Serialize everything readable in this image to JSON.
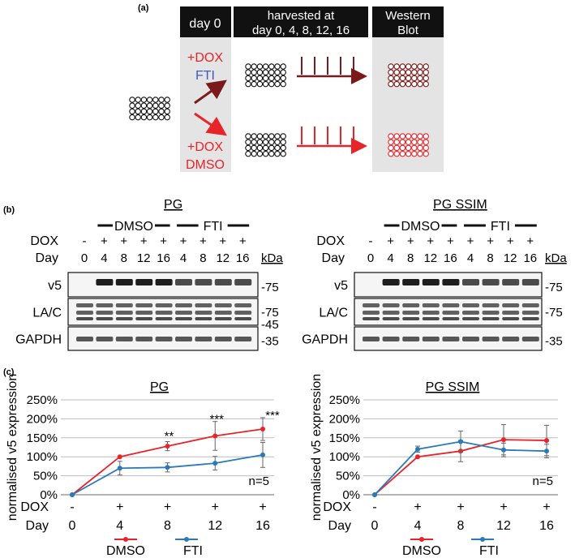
{
  "panel_a": {
    "label": "(a)",
    "header_day0": "day 0",
    "header_harvest_line1": "harvested at",
    "header_harvest_line2": "day 0, 4, 8, 12, 16",
    "header_wb_line1": "Western",
    "header_wb_line2": "Blot",
    "top_treatment_line1": "+DOX",
    "top_treatment_line2": "FTI",
    "bottom_treatment_line1": "+DOX",
    "bottom_treatment_line2": "DMSO",
    "colors": {
      "fti_dark": "#7a1a1a",
      "dmso_red": "#e8242b",
      "fti_blue": "#3b5cc4",
      "header_bg": "#111111",
      "panel_bg": "#e4e4e4"
    }
  },
  "panel_b": {
    "label": "(b)",
    "blots": [
      {
        "title": "PG",
        "group_dmso": "DMSO",
        "group_fti": "FTI",
        "row_dox_label": "DOX",
        "row_day_label": "Day",
        "dox": [
          "-",
          "+",
          "+",
          "+",
          "+",
          "+",
          "+",
          "+",
          "+"
        ],
        "days": [
          "0",
          "4",
          "8",
          "12",
          "16",
          "4",
          "8",
          "12",
          "16"
        ],
        "kda_label": "kDa",
        "rows": [
          {
            "name": "v5",
            "markers": [
              "75"
            ]
          },
          {
            "name": "LA/C",
            "markers": [
              "75",
              "45"
            ]
          },
          {
            "name": "GAPDH",
            "markers": [
              "35"
            ]
          }
        ]
      },
      {
        "title": "PG SSIM",
        "group_dmso": "DMSO",
        "group_fti": "FTI",
        "row_dox_label": "DOX",
        "row_day_label": "Day",
        "dox": [
          "-",
          "+",
          "+",
          "+",
          "+",
          "+",
          "+",
          "+",
          "+"
        ],
        "days": [
          "0",
          "4",
          "8",
          "12",
          "16",
          "4",
          "8",
          "12",
          "16"
        ],
        "kda_label": "kDa",
        "rows": [
          {
            "name": "v5",
            "markers": [
              "75"
            ]
          },
          {
            "name": "LA/C",
            "markers": [
              "75"
            ]
          },
          {
            "name": "GAPDH",
            "markers": [
              "35"
            ]
          }
        ]
      }
    ]
  },
  "panel_c_label": "(c)",
  "chart_data": [
    {
      "type": "line",
      "title": "PG",
      "ylabel": "normalised v5 expression",
      "ylim": [
        0,
        250
      ],
      "yticks": [
        "0%",
        "50%",
        "100%",
        "150%",
        "200%",
        "250%"
      ],
      "x": [
        0,
        4,
        8,
        12,
        16
      ],
      "dox_row_label": "DOX",
      "dox_values": [
        "-",
        "+",
        "+",
        "+",
        "+"
      ],
      "day_row_label": "Day",
      "day_values": [
        "0",
        "4",
        "8",
        "12",
        "16"
      ],
      "series": [
        {
          "name": "DMSO",
          "color": "#e8242b",
          "values": [
            0,
            100,
            128,
            155,
            173
          ],
          "errors": [
            0,
            0,
            12,
            38,
            30
          ]
        },
        {
          "name": "FTI",
          "color": "#2a7ab8",
          "values": [
            0,
            70,
            72,
            83,
            105
          ],
          "errors": [
            0,
            18,
            12,
            18,
            33
          ]
        }
      ],
      "significance": [
        {
          "x": 8,
          "label": "**"
        },
        {
          "x": 12,
          "label": "***"
        },
        {
          "x": 16,
          "label": "***"
        }
      ],
      "annotation": "n=5",
      "legend": [
        "DMSO",
        "FTI"
      ]
    },
    {
      "type": "line",
      "title": "PG SSIM",
      "ylabel": "normalised v5 expression",
      "ylim": [
        0,
        250
      ],
      "yticks": [
        "0%",
        "50%",
        "100%",
        "150%",
        "200%",
        "250%"
      ],
      "x": [
        0,
        4,
        8,
        12,
        16
      ],
      "dox_row_label": "DOX",
      "dox_values": [
        "-",
        "+",
        "+",
        "+",
        "+"
      ],
      "day_row_label": "Day",
      "day_values": [
        "0",
        "4",
        "8",
        "12",
        "16"
      ],
      "series": [
        {
          "name": "DMSO",
          "color": "#e8242b",
          "values": [
            0,
            100,
            115,
            145,
            143
          ],
          "errors": [
            0,
            0,
            28,
            40,
            40
          ]
        },
        {
          "name": "FTI",
          "color": "#2a7ab8",
          "values": [
            0,
            120,
            140,
            118,
            115
          ],
          "errors": [
            0,
            8,
            28,
            18,
            18
          ]
        }
      ],
      "significance": [],
      "annotation": "n=5",
      "legend": [
        "DMSO",
        "FTI"
      ]
    }
  ]
}
